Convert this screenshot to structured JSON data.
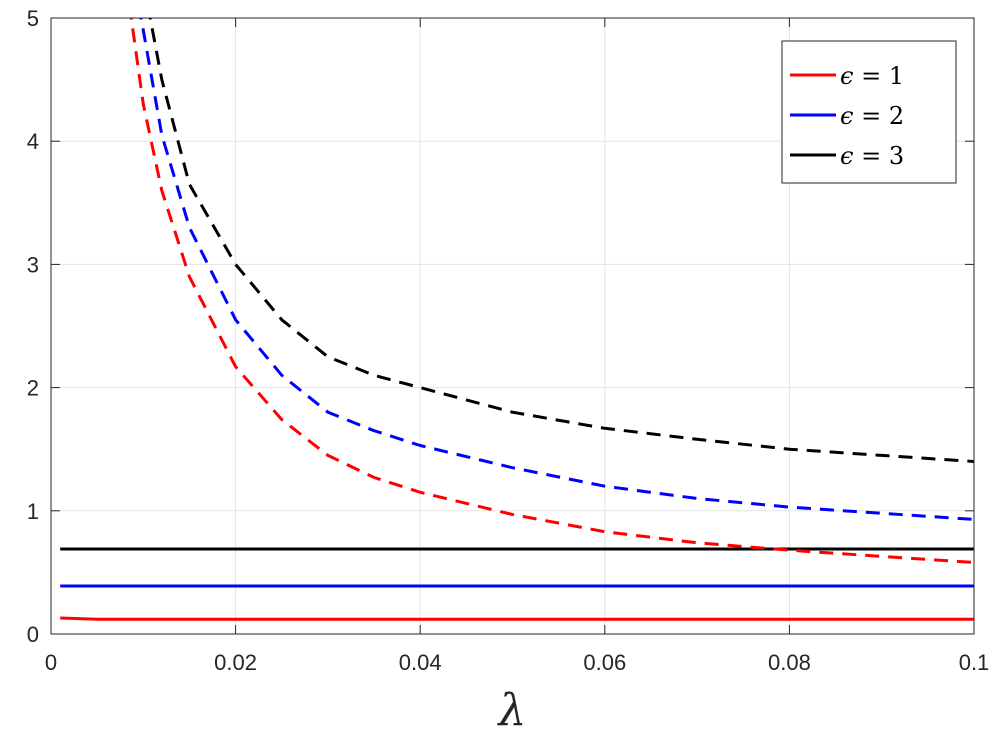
{
  "chart_data": {
    "type": "line",
    "title": "",
    "xlabel": "λ",
    "ylabel": "",
    "xlim": [
      0,
      0.1
    ],
    "ylim": [
      0,
      5
    ],
    "xticks": [
      0,
      0.02,
      0.04,
      0.06,
      0.08,
      0.1
    ],
    "xtick_labels": [
      "0",
      "0.02",
      "0.04",
      "0.06",
      "0.08",
      "0.1"
    ],
    "yticks": [
      0,
      1,
      2,
      3,
      4,
      5
    ],
    "ytick_labels": [
      "0",
      "1",
      "2",
      "3",
      "4",
      "5"
    ],
    "grid": true,
    "legend_position": "top-right",
    "legend": [
      {
        "label_symbol": "ϵ",
        "label_rest": " = 1",
        "color": "#ff0000"
      },
      {
        "label_symbol": "ϵ",
        "label_rest": " = 2",
        "color": "#0000ff"
      },
      {
        "label_symbol": "ϵ",
        "label_rest": " = 3",
        "color": "#000000"
      }
    ],
    "series": [
      {
        "color": "#ff0000",
        "style": "solid",
        "x": [
          0.001,
          0.005,
          0.01,
          0.02,
          0.04,
          0.06,
          0.08,
          0.1
        ],
        "y": [
          0.13,
          0.12,
          0.12,
          0.12,
          0.12,
          0.12,
          0.12,
          0.12
        ]
      },
      {
        "color": "#0000ff",
        "style": "solid",
        "x": [
          0.001,
          0.005,
          0.01,
          0.02,
          0.04,
          0.06,
          0.08,
          0.1
        ],
        "y": [
          0.39,
          0.39,
          0.39,
          0.39,
          0.39,
          0.39,
          0.39,
          0.39
        ]
      },
      {
        "color": "#000000",
        "style": "solid",
        "x": [
          0.001,
          0.005,
          0.01,
          0.02,
          0.04,
          0.06,
          0.08,
          0.1
        ],
        "y": [
          0.69,
          0.69,
          0.69,
          0.69,
          0.69,
          0.69,
          0.69,
          0.69
        ]
      },
      {
        "color": "#ff0000",
        "style": "dashed",
        "x": [
          0.0085,
          0.01,
          0.012,
          0.015,
          0.02,
          0.025,
          0.03,
          0.035,
          0.04,
          0.05,
          0.06,
          0.07,
          0.08,
          0.09,
          0.1
        ],
        "y": [
          5.1,
          4.3,
          3.6,
          2.9,
          2.17,
          1.74,
          1.45,
          1.27,
          1.15,
          0.97,
          0.83,
          0.74,
          0.68,
          0.63,
          0.58
        ]
      },
      {
        "color": "#0000ff",
        "style": "dashed",
        "x": [
          0.0095,
          0.01,
          0.012,
          0.015,
          0.02,
          0.025,
          0.03,
          0.035,
          0.04,
          0.05,
          0.06,
          0.07,
          0.08,
          0.09,
          0.1
        ],
        "y": [
          5.1,
          4.9,
          4.05,
          3.3,
          2.55,
          2.1,
          1.8,
          1.65,
          1.53,
          1.35,
          1.2,
          1.1,
          1.03,
          0.98,
          0.93
        ]
      },
      {
        "color": "#000000",
        "style": "dashed",
        "x": [
          0.0105,
          0.012,
          0.015,
          0.02,
          0.025,
          0.03,
          0.035,
          0.04,
          0.05,
          0.06,
          0.07,
          0.08,
          0.09,
          0.1
        ],
        "y": [
          5.1,
          4.5,
          3.65,
          3.0,
          2.55,
          2.25,
          2.1,
          2.0,
          1.8,
          1.67,
          1.58,
          1.5,
          1.45,
          1.4
        ]
      }
    ]
  }
}
